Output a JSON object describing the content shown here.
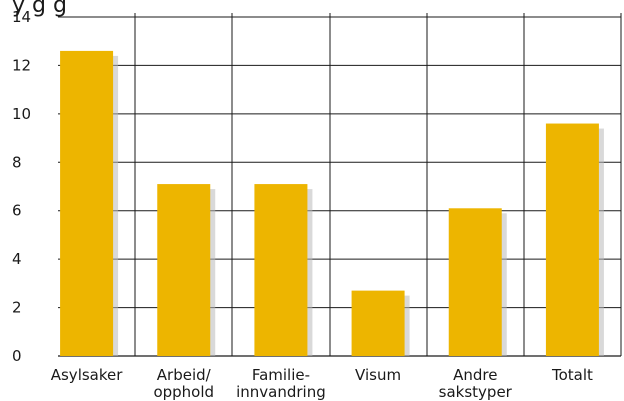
{
  "chart_data": {
    "type": "bar",
    "title_fragment": "y                     g                    g",
    "categories": [
      [
        "Asylsaker"
      ],
      [
        "Arbeid/",
        "opphold"
      ],
      [
        "Familie-",
        "innvandring"
      ],
      [
        "Visum"
      ],
      [
        "Andre",
        "sakstyper"
      ],
      [
        "Totalt"
      ]
    ],
    "values": [
      12.6,
      7.1,
      7.1,
      2.7,
      6.1,
      9.6
    ],
    "ylim": [
      0,
      14
    ],
    "yticks": [
      0,
      2,
      4,
      6,
      8,
      10,
      12,
      14
    ],
    "grid": true,
    "bar_color": "#EDB500",
    "shadow_color": "#B9B9B9",
    "grid_color": "#1a1a1a"
  }
}
